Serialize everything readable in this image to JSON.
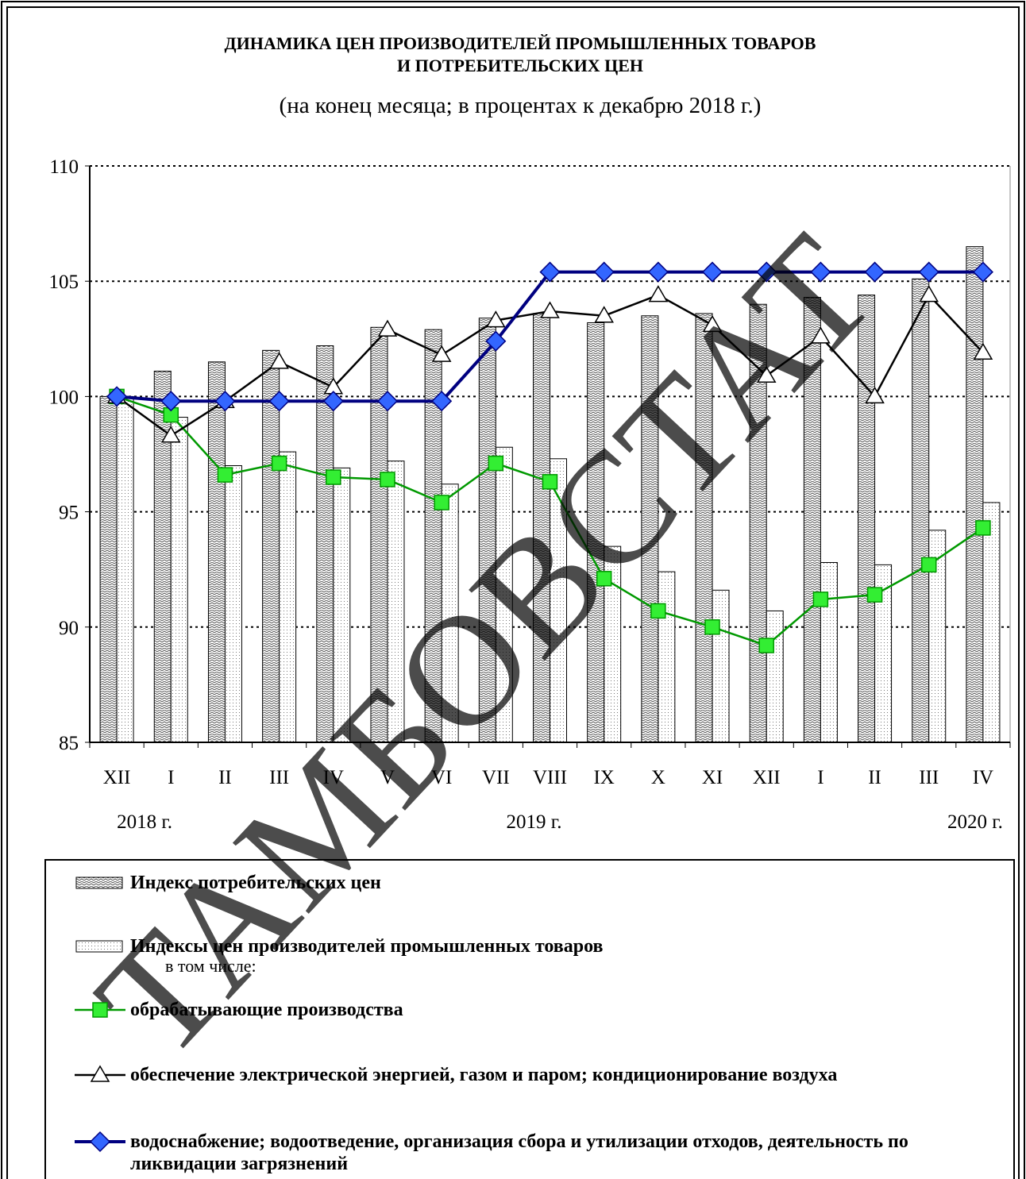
{
  "chart_data": {
    "type": "bar_line",
    "title": "ДИНАМИКА  ЦЕН  ПРОИЗВОДИТЕЛЕЙ  ПРОМЫШЛЕННЫХ  ТОВАРОВ",
    "title_line2": "И  ПОТРЕБИТЕЛЬСКИХ  ЦЕН",
    "subtitle": "(на конец месяца; в процентах к декабрю 2018 г.)",
    "categories": [
      "XII",
      "I",
      "II",
      "III",
      "IV",
      "V",
      "VI",
      "VII",
      "VIII",
      "IX",
      "X",
      "XI",
      "XII",
      "I",
      "II",
      "III",
      "IV"
    ],
    "year_labels": [
      "2018 г.",
      "2019 г.",
      "2020 г."
    ],
    "ylim": [
      85,
      110
    ],
    "yticks": [
      85,
      90,
      95,
      100,
      105,
      110
    ],
    "grid": true,
    "legend_note": "в том числе:",
    "watermark": "ТАМБОВСТАТ",
    "series": [
      {
        "name": "Индекс потребительских цен",
        "kind": "bar",
        "color": "#808080",
        "values": [
          100,
          101.1,
          101.5,
          102.0,
          102.2,
          103.0,
          102.9,
          103.4,
          103.6,
          103.2,
          103.5,
          103.6,
          104.0,
          104.3,
          104.4,
          105.1,
          106.5
        ]
      },
      {
        "name": "Индексы цен производителей промышленных товаров",
        "kind": "bar",
        "color": "#c8c8c8",
        "values": [
          100,
          99.1,
          97.0,
          97.6,
          96.9,
          97.2,
          96.2,
          97.8,
          97.3,
          93.5,
          92.4,
          91.6,
          90.7,
          92.8,
          92.7,
          94.2,
          95.4
        ]
      },
      {
        "name": "обрабатывающие производства",
        "kind": "line",
        "color": "#009900",
        "marker": "square",
        "marker_color": "#33ee33",
        "values": [
          100,
          99.2,
          96.6,
          97.1,
          96.5,
          96.4,
          95.4,
          97.1,
          96.3,
          92.1,
          90.7,
          90.0,
          89.2,
          91.2,
          91.4,
          92.7,
          94.3
        ]
      },
      {
        "name": "обеспечение электрической энергией, газом и паром; кондиционирование воздуха",
        "kind": "line",
        "color": "#000000",
        "marker": "triangle",
        "marker_color": "#ffffff",
        "values": [
          100,
          98.3,
          99.8,
          101.5,
          100.4,
          102.9,
          101.8,
          103.3,
          103.7,
          103.5,
          104.4,
          103.1,
          100.9,
          102.6,
          100.0,
          104.4,
          101.9
        ]
      },
      {
        "name": "водоснабжение; водоотведение, организация сбора и утилизации отходов, деятельность по ликвидации загрязнений",
        "kind": "line",
        "color": "#000080",
        "marker": "diamond",
        "marker_color": "#3366ff",
        "values": [
          100,
          99.8,
          99.8,
          99.8,
          99.8,
          99.8,
          99.8,
          102.4,
          105.4,
          105.4,
          105.4,
          105.4,
          105.4,
          105.4,
          105.4,
          105.4,
          105.4
        ]
      }
    ]
  }
}
